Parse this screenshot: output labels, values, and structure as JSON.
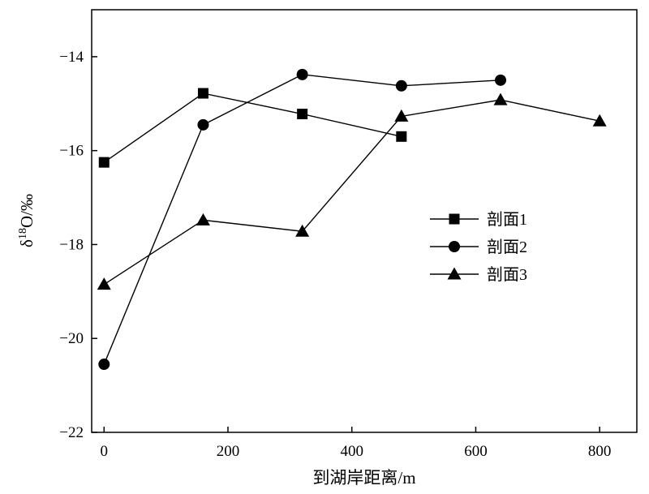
{
  "chart_data": {
    "type": "line",
    "x": [
      0,
      160,
      320,
      480,
      640,
      800
    ],
    "xlabel": "到湖岸距离/m",
    "ylabel": "δ18O/‰",
    "ylabel_parts": {
      "base": "δ",
      "sup": "18",
      "rest": "O/‰"
    },
    "xlim": [
      -20,
      860
    ],
    "ylim": [
      -22,
      -13
    ],
    "xticks": [
      0,
      200,
      400,
      600,
      800
    ],
    "xtick_labels": [
      "0",
      "200",
      "400",
      "600",
      "800"
    ],
    "yticks": [
      -14,
      -16,
      -18,
      -20,
      -22
    ],
    "ytick_labels": [
      "−14",
      "−16",
      "−18",
      "−20",
      "−22"
    ],
    "legend_position": "right",
    "series": [
      {
        "name": "剖面1",
        "marker": "square",
        "points": [
          [
            0,
            -16.25
          ],
          [
            160,
            -14.78
          ],
          [
            320,
            -15.22
          ],
          [
            480,
            -15.7
          ]
        ]
      },
      {
        "name": "剖面2",
        "marker": "circle",
        "points": [
          [
            0,
            -20.55
          ],
          [
            160,
            -15.45
          ],
          [
            320,
            -14.38
          ],
          [
            480,
            -14.62
          ],
          [
            640,
            -14.5
          ]
        ]
      },
      {
        "name": "剖面3",
        "marker": "triangle",
        "points": [
          [
            0,
            -18.85
          ],
          [
            160,
            -17.48
          ],
          [
            320,
            -17.72
          ],
          [
            480,
            -15.27
          ],
          [
            640,
            -14.92
          ],
          [
            800,
            -15.37
          ]
        ]
      }
    ]
  }
}
